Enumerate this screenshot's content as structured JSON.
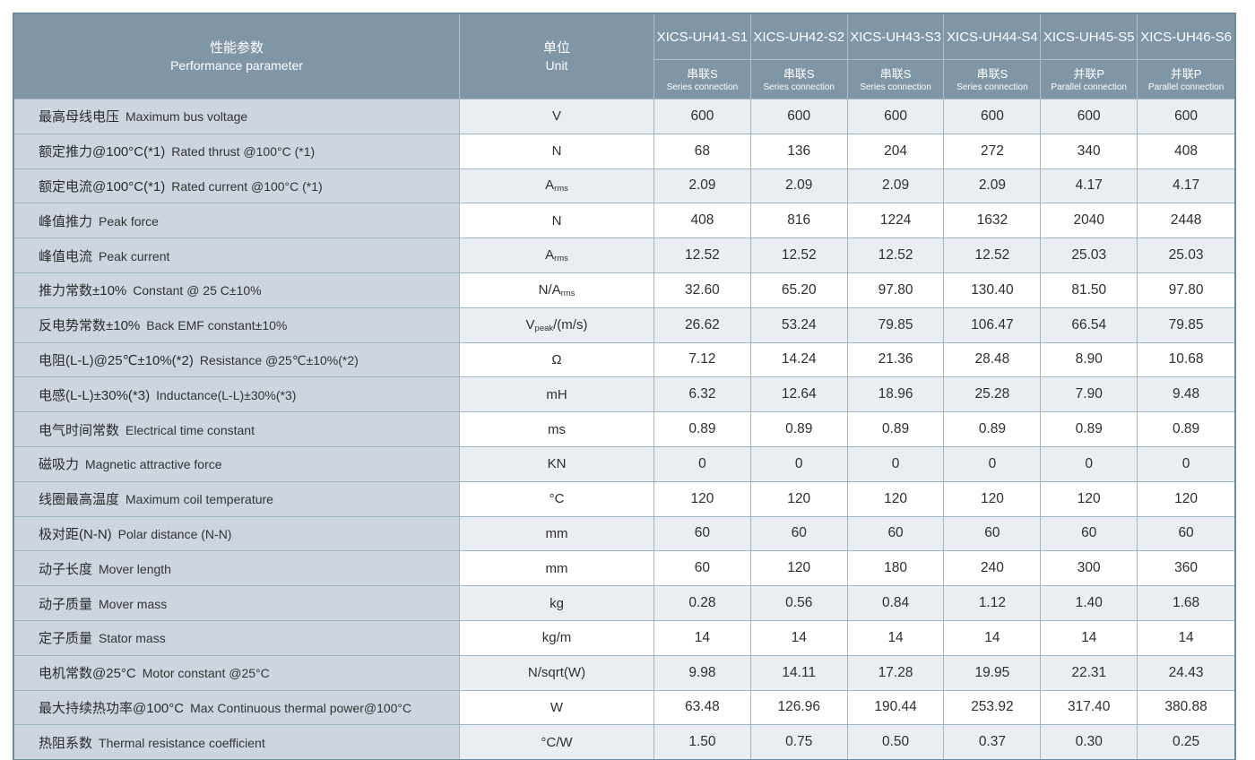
{
  "table": {
    "colors": {
      "header_bg": "#7e96a6",
      "header_text": "#ffffff",
      "param_col_bg": "#cdd6e0",
      "row_alt_bg": "#eaedf2",
      "row_bg": "#ffffff",
      "grid_line": "#9db5c5",
      "outer_border": "#6f8c9e",
      "text": "#2f2f2f"
    },
    "header": {
      "param_zh": "性能参数",
      "param_en": "Performance parameter",
      "unit_zh": "单位",
      "unit_en": "Unit",
      "models": [
        {
          "name": "XICS-UH41-S1",
          "conn_zh": "串联S",
          "conn_en": "Series connection"
        },
        {
          "name": "XICS-UH42-S2",
          "conn_zh": "串联S",
          "conn_en": "Series connection"
        },
        {
          "name": "XICS-UH43-S3",
          "conn_zh": "串联S",
          "conn_en": "Series connection"
        },
        {
          "name": "XICS-UH44-S4",
          "conn_zh": "串联S",
          "conn_en": "Series connection"
        },
        {
          "name": "XICS-UH45-S5",
          "conn_zh": "并联P",
          "conn_en": "Parallel connection"
        },
        {
          "name": "XICS-UH46-S6",
          "conn_zh": "并联P",
          "conn_en": "Parallel connection"
        }
      ]
    },
    "rows": [
      {
        "zh": "最高母线电压",
        "en": "Maximum bus voltage",
        "unit": "V",
        "values": [
          "600",
          "600",
          "600",
          "600",
          "600",
          "600"
        ]
      },
      {
        "zh": "额定推力@100°C(*1)",
        "en": "Rated thrust @100°C (*1)",
        "unit": "N",
        "values": [
          "68",
          "136",
          "204",
          "272",
          "340",
          "408"
        ]
      },
      {
        "zh": "额定电流@100°C(*1)",
        "en": "Rated current @100°C (*1)",
        "unit": "A_{rms}",
        "values": [
          "2.09",
          "2.09",
          "2.09",
          "2.09",
          "4.17",
          "4.17"
        ]
      },
      {
        "zh": "峰值推力",
        "en": "Peak force",
        "unit": "N",
        "values": [
          "408",
          "816",
          "1224",
          "1632",
          "2040",
          "2448"
        ]
      },
      {
        "zh": "峰值电流",
        "en": "Peak current",
        "unit": "A_{rms}",
        "values": [
          "12.52",
          "12.52",
          "12.52",
          "12.52",
          "25.03",
          "25.03"
        ]
      },
      {
        "zh": "推力常数±10%",
        "en": "Constant @ 25 C±10%",
        "unit": "N/A_{rms}",
        "values": [
          "32.60",
          "65.20",
          "97.80",
          "130.40",
          "81.50",
          "97.80"
        ]
      },
      {
        "zh": "反电势常数±10%",
        "en": "Back EMF constant±10%",
        "unit": "V_{peak}/(m/s)",
        "values": [
          "26.62",
          "53.24",
          "79.85",
          "106.47",
          "66.54",
          "79.85"
        ]
      },
      {
        "zh": "电阻(L-L)@25℃±10%(*2)",
        "en": "Resistance @25℃±10%(*2)",
        "unit": "Ω",
        "values": [
          "7.12",
          "14.24",
          "21.36",
          "28.48",
          "8.90",
          "10.68"
        ]
      },
      {
        "zh": "电感(L-L)±30%(*3)",
        "en": "Inductance(L-L)±30%(*3)",
        "unit": "mH",
        "values": [
          "6.32",
          "12.64",
          "18.96",
          "25.28",
          "7.90",
          "9.48"
        ]
      },
      {
        "zh": "电气时间常数",
        "en": "Electrical time constant",
        "unit": "ms",
        "values": [
          "0.89",
          "0.89",
          "0.89",
          "0.89",
          "0.89",
          "0.89"
        ]
      },
      {
        "zh": "磁吸力",
        "en": "Magnetic attractive force",
        "unit": "KN",
        "values": [
          "0",
          "0",
          "0",
          "0",
          "0",
          "0"
        ]
      },
      {
        "zh": "线圈最高温度",
        "en": "Maximum coil temperature",
        "unit": "°C",
        "values": [
          "120",
          "120",
          "120",
          "120",
          "120",
          "120"
        ]
      },
      {
        "zh": "极对距(N-N)",
        "en": "Polar distance (N-N)",
        "unit": "mm",
        "values": [
          "60",
          "60",
          "60",
          "60",
          "60",
          "60"
        ]
      },
      {
        "zh": "动子长度",
        "en": "Mover length",
        "unit": "mm",
        "values": [
          "60",
          "120",
          "180",
          "240",
          "300",
          "360"
        ]
      },
      {
        "zh": "动子质量",
        "en": "Mover mass",
        "unit": "kg",
        "values": [
          "0.28",
          "0.56",
          "0.84",
          "1.12",
          "1.40",
          "1.68"
        ]
      },
      {
        "zh": "定子质量",
        "en": "Stator mass",
        "unit": "kg/m",
        "values": [
          "14",
          "14",
          "14",
          "14",
          "14",
          "14"
        ]
      },
      {
        "zh": "电机常数@25°C",
        "en": "Motor constant @25°C",
        "unit": "N/sqrt(W)",
        "values": [
          "9.98",
          "14.11",
          "17.28",
          "19.95",
          "22.31",
          "24.43"
        ]
      },
      {
        "zh": "最大持续热功率@100°C",
        "en": "Max Continuous thermal power@100°C",
        "unit": "W",
        "values": [
          "63.48",
          "126.96",
          "190.44",
          "253.92",
          "317.40",
          "380.88"
        ]
      },
      {
        "zh": "热阻系数",
        "en": "Thermal resistance coefficient",
        "unit": "°C/W",
        "values": [
          "1.50",
          "0.75",
          "0.50",
          "0.37",
          "0.30",
          "0.25"
        ]
      }
    ]
  }
}
